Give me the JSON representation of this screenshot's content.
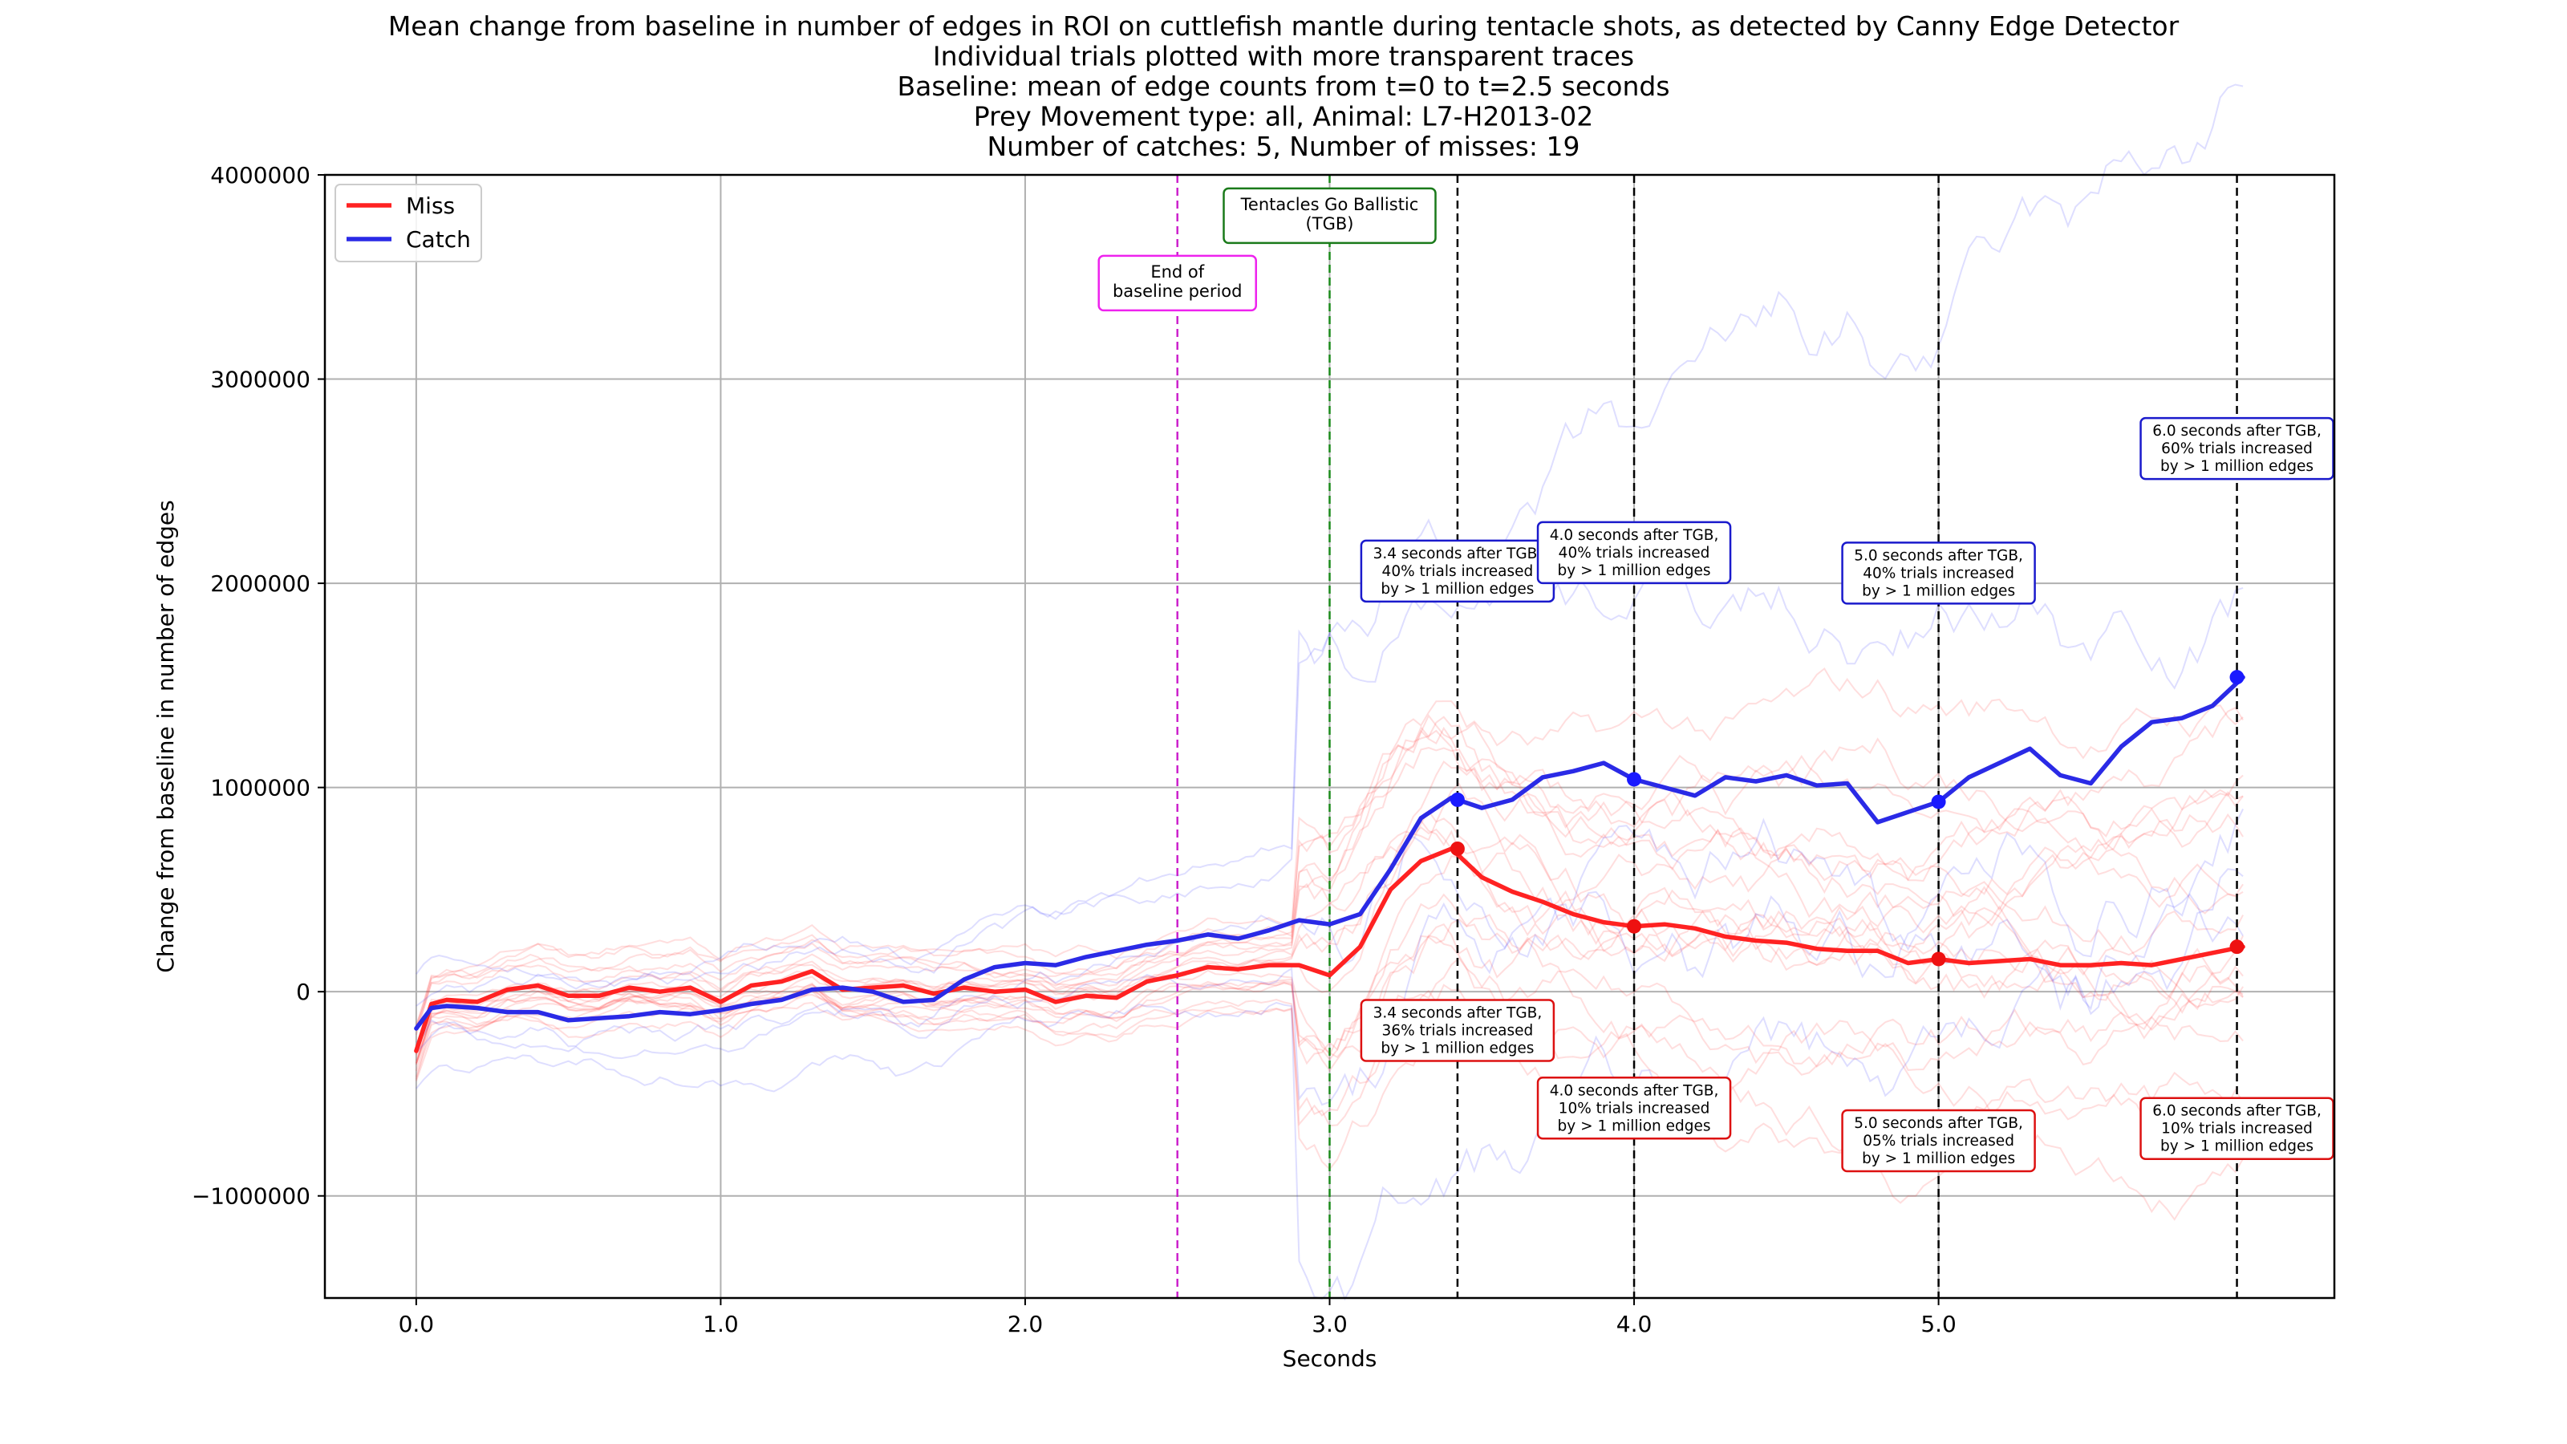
{
  "chart_data": {
    "type": "line",
    "title_lines": [
      "Mean change from baseline in number of edges in ROI on cuttlefish mantle during tentacle shots, as detected by Canny Edge Detector",
      "Individual trials plotted with more transparent traces",
      "Baseline: mean of edge counts from t=0 to t=2.5 seconds",
      "Prey Movement type: all, Animal: L7-H2013-02",
      "Number of catches: 5, Number of misses: 19"
    ],
    "xlabel": "Seconds",
    "ylabel": "Change from baseline in number of edges",
    "xlim": [
      -0.3,
      6.3
    ],
    "ylim": [
      -1500000,
      4000000
    ],
    "x_ticks": [
      0,
      1,
      2,
      3,
      4,
      5
    ],
    "x_tick_labels": [
      "0.0",
      "1.0",
      "2.0",
      "3.0",
      "4.0",
      "5.0"
    ],
    "y_ticks": [
      -1000000,
      0,
      1000000,
      2000000,
      3000000,
      4000000
    ],
    "y_tick_labels": [
      "−1000000",
      "0",
      "1000000",
      "2000000",
      "3000000",
      "4000000"
    ],
    "grid": true,
    "legend": {
      "position": "top-left",
      "entries": [
        {
          "label": "Miss",
          "color": "#ff2222"
        },
        {
          "label": "Catch",
          "color": "#2a2ae6"
        }
      ]
    },
    "series": [
      {
        "name": "Miss",
        "color": "#ff2222",
        "x": [
          0,
          0.05,
          0.1,
          0.2,
          0.3,
          0.4,
          0.5,
          0.6,
          0.7,
          0.8,
          0.9,
          1.0,
          1.1,
          1.2,
          1.3,
          1.4,
          1.5,
          1.6,
          1.7,
          1.8,
          1.9,
          2.0,
          2.1,
          2.2,
          2.3,
          2.4,
          2.5,
          2.6,
          2.7,
          2.8,
          2.9,
          3.0,
          3.1,
          3.2,
          3.3,
          3.4,
          3.5,
          3.6,
          3.7,
          3.8,
          3.9,
          4.0,
          4.1,
          4.2,
          4.3,
          4.4,
          4.5,
          4.6,
          4.7,
          4.8,
          4.9,
          5.0,
          5.1,
          5.2,
          5.3,
          5.4,
          5.5,
          5.6,
          5.7,
          5.8,
          5.9,
          6.0
        ],
        "y": [
          -290000,
          -60000,
          -40000,
          -50000,
          10000,
          30000,
          -20000,
          -20000,
          20000,
          0,
          20000,
          -50000,
          30000,
          50000,
          100000,
          10000,
          20000,
          30000,
          -10000,
          20000,
          0,
          10000,
          -50000,
          -20000,
          -30000,
          50000,
          80000,
          120000,
          110000,
          130000,
          130000,
          80000,
          220000,
          500000,
          640000,
          700000,
          560000,
          490000,
          440000,
          380000,
          340000,
          320000,
          330000,
          310000,
          270000,
          250000,
          240000,
          210000,
          200000,
          200000,
          140000,
          160000,
          140000,
          150000,
          160000,
          130000,
          130000,
          140000,
          130000,
          160000,
          190000,
          220000
        ]
      },
      {
        "name": "Catch",
        "color": "#2a2ae6",
        "x": [
          0,
          0.05,
          0.1,
          0.2,
          0.3,
          0.4,
          0.5,
          0.6,
          0.7,
          0.8,
          0.9,
          1.0,
          1.1,
          1.2,
          1.3,
          1.4,
          1.5,
          1.6,
          1.7,
          1.8,
          1.9,
          2.0,
          2.1,
          2.2,
          2.3,
          2.4,
          2.5,
          2.6,
          2.7,
          2.8,
          2.9,
          3.0,
          3.1,
          3.2,
          3.3,
          3.4,
          3.5,
          3.6,
          3.7,
          3.8,
          3.9,
          4.0,
          4.1,
          4.2,
          4.3,
          4.4,
          4.5,
          4.6,
          4.7,
          4.8,
          4.9,
          5.0,
          5.1,
          5.2,
          5.3,
          5.4,
          5.5,
          5.6,
          5.7,
          5.8,
          5.9,
          6.0
        ],
        "y": [
          -180000,
          -80000,
          -70000,
          -80000,
          -100000,
          -100000,
          -140000,
          -130000,
          -120000,
          -100000,
          -110000,
          -90000,
          -60000,
          -40000,
          10000,
          20000,
          0,
          -50000,
          -40000,
          60000,
          120000,
          140000,
          130000,
          170000,
          200000,
          230000,
          250000,
          280000,
          260000,
          300000,
          350000,
          330000,
          380000,
          600000,
          850000,
          950000,
          900000,
          940000,
          1050000,
          1080000,
          1120000,
          1040000,
          1000000,
          960000,
          1050000,
          1030000,
          1060000,
          1010000,
          1020000,
          830000,
          880000,
          930000,
          1050000,
          1120000,
          1190000,
          1060000,
          1020000,
          1200000,
          1320000,
          1340000,
          1400000,
          1540000
        ]
      }
    ],
    "vlines": [
      {
        "x": 2.5,
        "color": "#cc22cc",
        "style": "dashed",
        "label": [
          "End of",
          "baseline period"
        ],
        "label_border": "#ee22ee",
        "label_y": 3470000
      },
      {
        "x": 3.0,
        "color": "#1a8a1a",
        "style": "dashed",
        "label": [
          "Tentacles Go Ballistic",
          "(TGB)"
        ],
        "label_border": "#1a7a1a",
        "label_y": 3800000
      },
      {
        "x": 3.42,
        "color": "#000000",
        "style": "dashed"
      },
      {
        "x": 4.0,
        "color": "#000000",
        "style": "dashed"
      },
      {
        "x": 5.0,
        "color": "#000000",
        "style": "dashed"
      },
      {
        "x": 5.98,
        "color": "#000000",
        "style": "dashed"
      }
    ],
    "markers": [
      {
        "x": 3.42,
        "y": 940000,
        "color": "#1a1aff"
      },
      {
        "x": 4.0,
        "y": 1040000,
        "color": "#1a1aff"
      },
      {
        "x": 5.0,
        "y": 930000,
        "color": "#1a1aff"
      },
      {
        "x": 5.98,
        "y": 1540000,
        "color": "#1a1aff"
      },
      {
        "x": 3.42,
        "y": 700000,
        "color": "#ee1111"
      },
      {
        "x": 4.0,
        "y": 320000,
        "color": "#ee1111"
      },
      {
        "x": 5.0,
        "y": 160000,
        "color": "#ee1111"
      },
      {
        "x": 5.98,
        "y": 220000,
        "color": "#ee1111"
      }
    ],
    "annotations": [
      {
        "x": 3.42,
        "y": 2060000,
        "color": "#1a1acc",
        "lines": [
          "3.4 seconds after TGB,",
          "40% trials increased",
          "by > 1 million edges"
        ]
      },
      {
        "x": 4.0,
        "y": 2150000,
        "color": "#1a1acc",
        "lines": [
          "4.0 seconds after TGB,",
          "40% trials increased",
          "by > 1 million edges"
        ]
      },
      {
        "x": 5.0,
        "y": 2050000,
        "color": "#1a1acc",
        "lines": [
          "5.0 seconds after TGB,",
          "40% trials increased",
          "by > 1 million edges"
        ]
      },
      {
        "x": 5.98,
        "y": 2660000,
        "color": "#1a1acc",
        "lines": [
          "6.0 seconds after TGB,",
          "60% trials increased",
          "by > 1 million edges"
        ]
      },
      {
        "x": 3.42,
        "y": -190000,
        "color": "#dd1111",
        "lines": [
          "3.4 seconds after TGB,",
          "36% trials increased",
          "by > 1 million edges"
        ]
      },
      {
        "x": 4.0,
        "y": -570000,
        "color": "#dd1111",
        "lines": [
          "4.0 seconds after TGB,",
          "10% trials increased",
          "by > 1 million edges"
        ]
      },
      {
        "x": 5.0,
        "y": -730000,
        "color": "#dd1111",
        "lines": [
          "5.0 seconds after TGB,",
          "05% trials increased",
          "by > 1 million edges"
        ]
      },
      {
        "x": 5.98,
        "y": -670000,
        "color": "#dd1111",
        "lines": [
          "6.0 seconds after TGB,",
          "10% trials increased",
          "by > 1 million edges"
        ]
      }
    ],
    "individual_trial_counts": {
      "miss": 19,
      "catch": 5
    }
  }
}
